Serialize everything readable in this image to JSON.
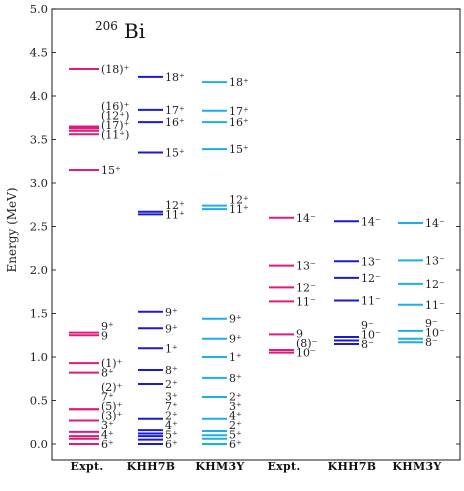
{
  "chart_data": {
    "type": "level-scheme",
    "nucleus": {
      "mass": "206",
      "symbol": "Bi"
    },
    "ylabel": "Energy (MeV)",
    "ylim": [
      0.0,
      5.0
    ],
    "yticks": [
      "0.0",
      "0.5",
      "1.0",
      "1.5",
      "2.0",
      "2.5",
      "3.0",
      "3.5",
      "4.0",
      "4.5",
      "5.0"
    ],
    "columns": [
      {
        "name": "Expt.",
        "color": "#e0197d",
        "levels": [
          {
            "e": 0.0,
            "label": "6⁺"
          },
          {
            "e": 0.06,
            "label": "4⁺"
          },
          {
            "e": 0.09,
            "label": "3⁺"
          },
          {
            "e": 0.14,
            "label": "(3)⁺"
          },
          {
            "e": 0.27,
            "label": "(5)⁺"
          },
          {
            "e": 0.4,
            "label": "7⁺"
          },
          {
            "e": 0.4,
            "label": "(2)⁺"
          },
          {
            "e": 0.82,
            "label": "8⁺"
          },
          {
            "e": 0.93,
            "label": "(1)⁺"
          },
          {
            "e": 1.25,
            "label": "9"
          },
          {
            "e": 1.28,
            "label": "9⁺"
          },
          {
            "e": 3.15,
            "label": "15⁺"
          },
          {
            "e": 3.56,
            "label": "(11⁺)"
          },
          {
            "e": 3.6,
            "label": "(17)⁺"
          },
          {
            "e": 3.63,
            "label": "(12⁺)"
          },
          {
            "e": 3.65,
            "label": "(16)⁺"
          },
          {
            "e": 4.31,
            "label": "(18)⁺"
          }
        ]
      },
      {
        "name": "KHH7B",
        "color": "#1a1ad6",
        "levels": [
          {
            "e": 0.0,
            "label": "6⁺"
          },
          {
            "e": 0.05,
            "label": "5⁺"
          },
          {
            "e": 0.09,
            "label": "4⁺"
          },
          {
            "e": 0.12,
            "label": "2⁺"
          },
          {
            "e": 0.16,
            "label": "7⁺"
          },
          {
            "e": 0.29,
            "label": "3⁺"
          },
          {
            "e": 0.69,
            "label": "2⁺"
          },
          {
            "e": 0.85,
            "label": "8⁺"
          },
          {
            "e": 1.1,
            "label": "1⁺"
          },
          {
            "e": 1.33,
            "label": "9⁺"
          },
          {
            "e": 1.52,
            "label": "9⁺"
          },
          {
            "e": 2.64,
            "label": "11⁺"
          },
          {
            "e": 2.67,
            "label": "12⁺"
          },
          {
            "e": 3.35,
            "label": "15⁺"
          },
          {
            "e": 3.7,
            "label": "16⁺"
          },
          {
            "e": 3.84,
            "label": "17⁺"
          },
          {
            "e": 4.22,
            "label": "18⁺"
          }
        ]
      },
      {
        "name": "KHM3Y",
        "color": "#1ab0e6",
        "levels": [
          {
            "e": 0.0,
            "label": "6⁺"
          },
          {
            "e": 0.06,
            "label": "5⁺"
          },
          {
            "e": 0.1,
            "label": "2⁺"
          },
          {
            "e": 0.15,
            "label": "4⁺"
          },
          {
            "e": 0.29,
            "label": "3⁺"
          },
          {
            "e": 0.54,
            "label": "2⁺"
          },
          {
            "e": 0.76,
            "label": "8⁺"
          },
          {
            "e": 1.0,
            "label": "1⁺"
          },
          {
            "e": 1.21,
            "label": "9⁺"
          },
          {
            "e": 1.44,
            "label": "9⁺"
          },
          {
            "e": 2.7,
            "label": "11⁺"
          },
          {
            "e": 2.74,
            "label": "12⁺"
          },
          {
            "e": 3.39,
            "label": "15⁺"
          },
          {
            "e": 3.7,
            "label": "16⁺"
          },
          {
            "e": 3.83,
            "label": "17⁺"
          },
          {
            "e": 4.16,
            "label": "18⁺"
          }
        ]
      },
      {
        "name": "Expt.",
        "color": "#e0197d",
        "levels": [
          {
            "e": 1.05,
            "label": "10⁻"
          },
          {
            "e": 1.08,
            "label": "(8)⁻"
          },
          {
            "e": 1.26,
            "label": "9"
          },
          {
            "e": 1.64,
            "label": "11⁻"
          },
          {
            "e": 1.8,
            "label": "12⁻"
          },
          {
            "e": 2.05,
            "label": "13⁻"
          },
          {
            "e": 2.6,
            "label": "14⁻"
          }
        ]
      },
      {
        "name": "KHH7B",
        "color": "#1a1ad6",
        "levels": [
          {
            "e": 1.15,
            "label": "8⁻"
          },
          {
            "e": 1.19,
            "label": "10⁻"
          },
          {
            "e": 1.23,
            "label": "9⁻"
          },
          {
            "e": 1.65,
            "label": "11⁻"
          },
          {
            "e": 1.91,
            "label": "12⁻"
          },
          {
            "e": 2.1,
            "label": "13⁻"
          },
          {
            "e": 2.56,
            "label": "14⁻"
          }
        ]
      },
      {
        "name": "KHM3Y",
        "color": "#1ab0e6",
        "levels": [
          {
            "e": 1.17,
            "label": "8⁻"
          },
          {
            "e": 1.21,
            "label": "10⁻"
          },
          {
            "e": 1.3,
            "label": "9⁻"
          },
          {
            "e": 1.6,
            "label": "11⁻"
          },
          {
            "e": 1.84,
            "label": "12⁻"
          },
          {
            "e": 2.11,
            "label": "13⁻"
          },
          {
            "e": 2.54,
            "label": "14⁻"
          }
        ]
      }
    ]
  }
}
